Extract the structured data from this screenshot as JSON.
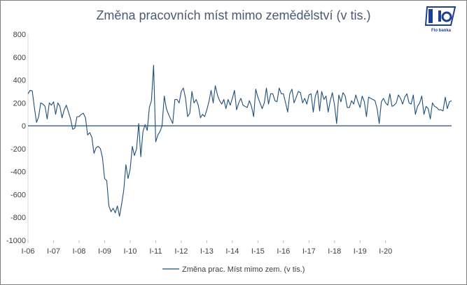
{
  "chart_data": {
    "type": "line",
    "title": "Změna pracovních míst mimo zemědělství (v tis.)",
    "ylim": [
      -1000,
      800
    ],
    "yticks": [
      "800",
      "600",
      "400",
      "200",
      "0",
      "-200",
      "-400",
      "-600",
      "-800",
      "-1000"
    ],
    "x_tick_labels": [
      "I-06",
      "I-07",
      "I-08",
      "I-09",
      "I-10",
      "I-11",
      "I-12",
      "I-13",
      "I-14",
      "I-15",
      "I-16",
      "I-17",
      "I-18",
      "I-19",
      "I-20"
    ],
    "grid": false,
    "legend_position": "bottom",
    "color": "#1f4e79",
    "series": [
      {
        "name": "Změna prac. Míst mimo zem. (v tis.)",
        "start": "2006-01",
        "values": [
          280,
          310,
          305,
          160,
          30,
          80,
          200,
          190,
          170,
          60,
          200,
          180,
          210,
          100,
          200,
          170,
          70,
          140,
          180,
          120,
          60,
          -30,
          -20,
          80,
          80,
          100,
          110,
          70,
          -80,
          -60,
          -100,
          -240,
          -190,
          -180,
          -200,
          -280,
          -460,
          -480,
          -700,
          -750,
          -720,
          -760,
          -700,
          -790,
          -680,
          -560,
          -340,
          -460,
          -380,
          -180,
          -260,
          -200,
          20,
          -270,
          -50,
          10,
          -40,
          160,
          220,
          530,
          -140,
          -80,
          -50,
          0,
          260,
          150,
          100,
          60,
          20,
          230,
          230,
          200,
          300,
          330,
          240,
          80,
          110,
          300,
          200,
          230,
          180,
          70,
          100,
          80,
          140,
          210,
          310,
          200,
          350,
          270,
          220,
          190,
          230,
          150,
          230,
          180,
          240,
          310,
          140,
          200,
          240,
          180,
          170,
          160,
          220,
          170,
          80,
          320,
          250,
          200,
          150,
          200,
          330,
          190,
          280,
          280,
          220,
          210,
          330,
          280,
          280,
          200,
          120,
          280,
          320,
          200,
          250,
          300,
          290,
          200,
          240,
          190,
          270,
          280,
          120,
          260,
          310,
          130,
          300,
          230,
          260,
          120,
          220,
          290,
          180,
          20,
          270,
          210,
          290,
          260,
          160,
          160,
          220,
          190,
          270,
          210,
          160,
          260,
          210,
          80,
          250,
          240,
          230,
          220,
          150,
          20,
          210,
          240,
          200,
          180,
          280,
          170,
          180,
          200,
          270,
          240,
          190,
          250,
          280,
          200,
          190,
          270,
          100,
          170,
          200,
          260,
          100,
          170,
          150,
          60,
          200,
          170,
          160,
          140,
          140,
          130,
          250,
          150,
          210,
          220
        ]
      }
    ]
  },
  "logo": {
    "letters": "Fio",
    "caption": "Fio banka"
  }
}
